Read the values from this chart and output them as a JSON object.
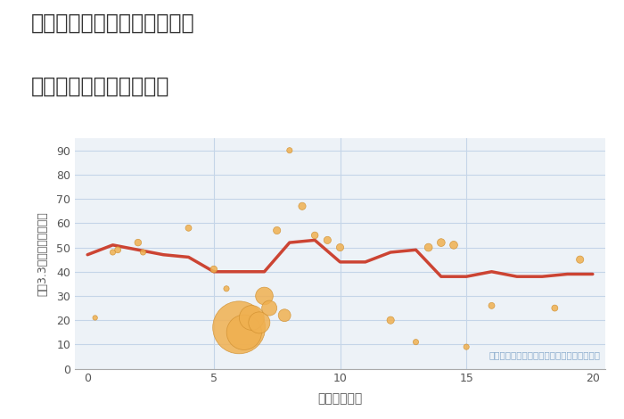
{
  "title_line1": "奈良県磯城郡三宅町上但馬の",
  "title_line2": "駅距離別中古戸建て価格",
  "xlabel": "駅距離（分）",
  "ylabel": "坪（3.3㎡）単価（万円）",
  "annotation": "円の大きさは、取引のあった物件面積を示す",
  "background_color": "#ffffff",
  "plot_bg_color": "#edf2f7",
  "grid_color": "#c5d5e8",
  "line_color": "#cc4433",
  "scatter_color": "#f0b050",
  "scatter_edge_color": "#d09030",
  "xlim": [
    -0.5,
    20.5
  ],
  "ylim": [
    0,
    95
  ],
  "yticks": [
    0,
    10,
    20,
    30,
    40,
    50,
    60,
    70,
    80,
    90
  ],
  "xticks": [
    0,
    5,
    10,
    15,
    20
  ],
  "line_x": [
    0,
    1,
    2,
    3,
    4,
    5,
    6,
    7,
    8,
    9,
    10,
    11,
    12,
    13,
    14,
    15,
    16,
    17,
    18,
    19,
    20
  ],
  "line_y": [
    47,
    51,
    49,
    47,
    46,
    40,
    40,
    40,
    52,
    53,
    44,
    44,
    48,
    49,
    38,
    38,
    40,
    38,
    38,
    39,
    39
  ],
  "scatter_x": [
    0.3,
    1.0,
    1.2,
    2.0,
    2.2,
    4.0,
    5.0,
    5.5,
    6.0,
    6.2,
    6.5,
    6.8,
    7.0,
    7.2,
    7.5,
    7.8,
    8.0,
    8.5,
    9.0,
    9.5,
    10.0,
    12.0,
    13.0,
    13.5,
    14.0,
    14.5,
    15.0,
    16.0,
    18.5,
    19.5
  ],
  "scatter_y": [
    21,
    48,
    49,
    52,
    48,
    58,
    41,
    33,
    17,
    15,
    21,
    19,
    30,
    25,
    57,
    22,
    90,
    67,
    55,
    53,
    50,
    20,
    11,
    50,
    52,
    51,
    9,
    26,
    25,
    45
  ],
  "scatter_size": [
    15,
    20,
    25,
    30,
    20,
    25,
    30,
    20,
    1800,
    800,
    400,
    300,
    200,
    150,
    35,
    100,
    20,
    35,
    30,
    35,
    35,
    35,
    20,
    40,
    40,
    40,
    20,
    25,
    25,
    35
  ]
}
